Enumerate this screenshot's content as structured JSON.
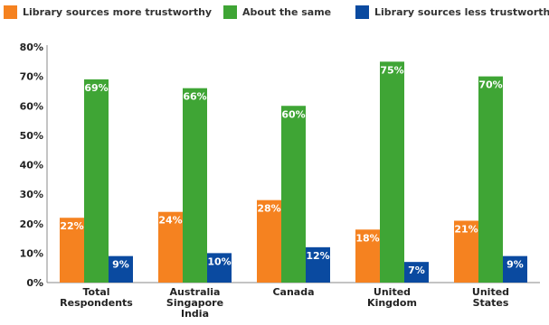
{
  "chart_data": {
    "type": "bar",
    "categories": [
      [
        "Total",
        "Respondents"
      ],
      [
        "Australia",
        "Singapore",
        "India"
      ],
      [
        "Canada"
      ],
      [
        "United",
        "Kingdom"
      ],
      [
        "United",
        "States"
      ]
    ],
    "series": [
      {
        "name": "Library sources more trustworthy",
        "color": "#f58220",
        "values": [
          22,
          24,
          28,
          18,
          21
        ],
        "labels": [
          "22%",
          "24%",
          "28%",
          "18%",
          "21%"
        ]
      },
      {
        "name": "About the same",
        "color": "#3fa535",
        "values": [
          69,
          66,
          60,
          75,
          70
        ],
        "labels": [
          "69%",
          "66%",
          "60%",
          "75%",
          "70%"
        ]
      },
      {
        "name": "Library sources less trustworthy",
        "color": "#0a4aa0",
        "values": [
          9,
          10,
          12,
          7,
          9
        ],
        "labels": [
          "9%",
          "10%",
          "12%",
          "7%",
          "9%"
        ]
      }
    ],
    "ylim": [
      0,
      80
    ],
    "yticks": [
      "0%",
      "10%",
      "20%",
      "30%",
      "40%",
      "50%",
      "60%",
      "70%",
      "80%"
    ],
    "grid": false,
    "legend": "top"
  }
}
